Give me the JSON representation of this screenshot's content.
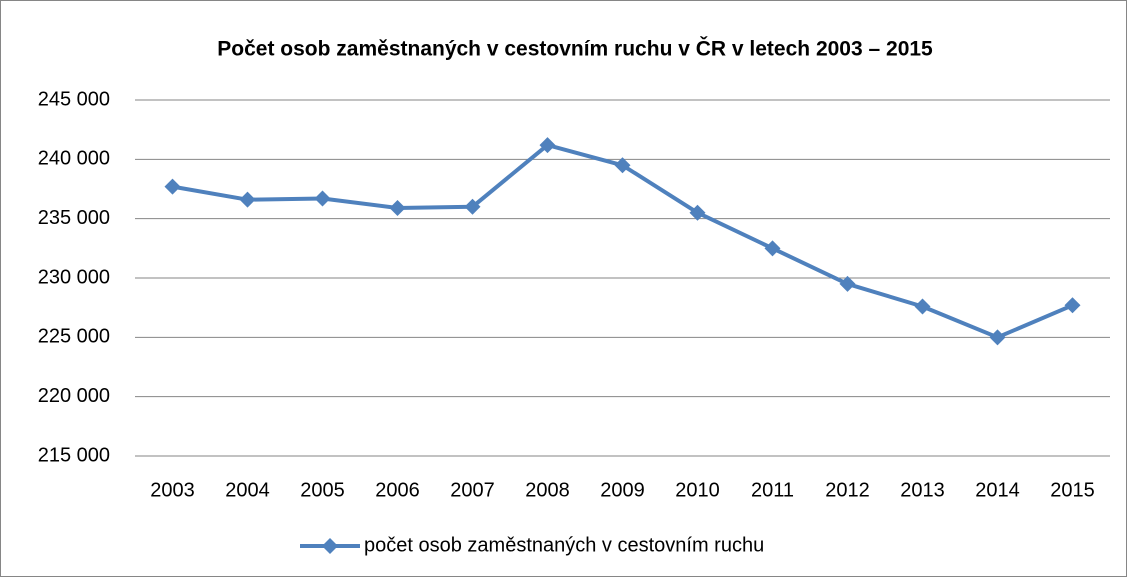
{
  "chart_data": {
    "type": "line",
    "title": "Počet osob zaměstnaných v cestovním ruchu v ČR v letech 2003 – 2015",
    "categories": [
      "2003",
      "2004",
      "2005",
      "2006",
      "2007",
      "2008",
      "2009",
      "2010",
      "2011",
      "2012",
      "2013",
      "2014",
      "2015"
    ],
    "series": [
      {
        "name": "počet osob zaměstnaných v cestovním ruchu",
        "color": "#4f81bd",
        "values": [
          237700,
          236600,
          236700,
          235900,
          236000,
          241200,
          239500,
          235500,
          232500,
          229500,
          227600,
          225000,
          227700
        ]
      }
    ],
    "ylim": [
      215000,
      245000
    ],
    "yticks": [
      {
        "value": 215000,
        "label": "215 000"
      },
      {
        "value": 220000,
        "label": "220 000"
      },
      {
        "value": 225000,
        "label": "225 000"
      },
      {
        "value": 230000,
        "label": "230 000"
      },
      {
        "value": 235000,
        "label": "235 000"
      },
      {
        "value": 240000,
        "label": "240 000"
      },
      {
        "value": 245000,
        "label": "245 000"
      }
    ],
    "grid": true,
    "legend": "bottom"
  }
}
